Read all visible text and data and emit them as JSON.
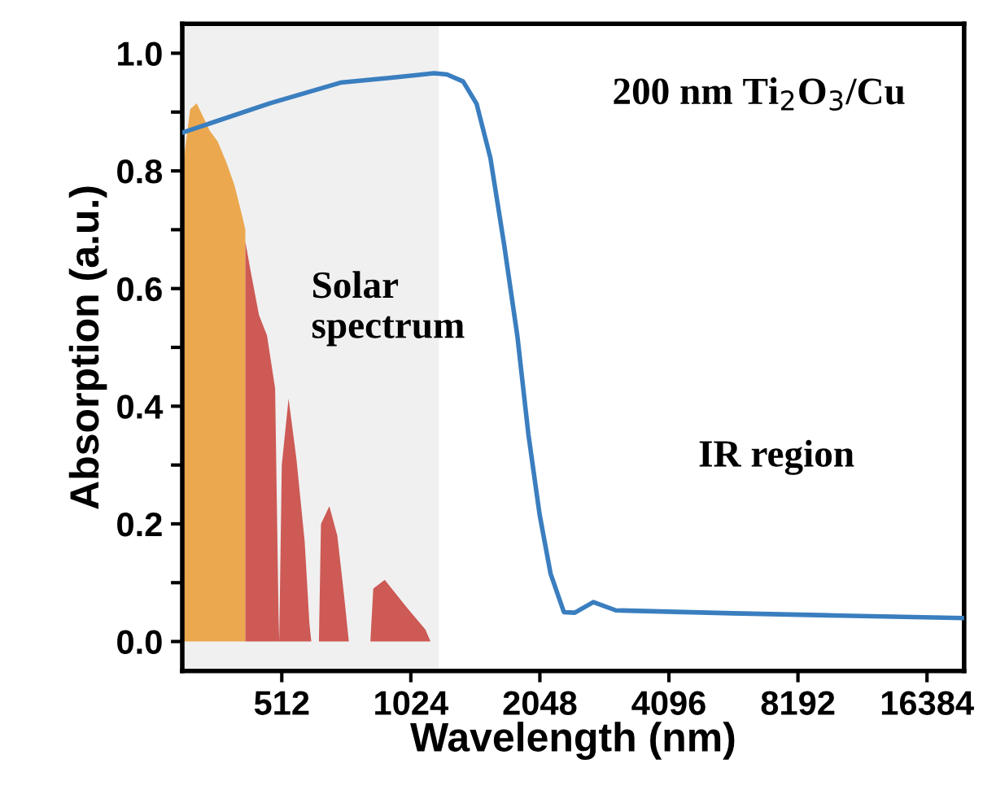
{
  "chart_data": {
    "type": "line",
    "xlabel": "Wavelength (nm)",
    "ylabel": "Absorption (a.u.)",
    "log": "x",
    "xlim": [
      300,
      20000
    ],
    "xticks": [
      512,
      1024,
      2048,
      4096,
      8192,
      16384
    ],
    "ylim": [
      -0.05,
      1.05
    ],
    "yticks": [
      {
        "value": 0,
        "label": "0.0"
      },
      {
        "value": 0.1,
        "label": null
      },
      {
        "value": 0.2,
        "label": "0.2"
      },
      {
        "value": 0.3,
        "label": null
      },
      {
        "value": 0.4,
        "label": "0.4"
      },
      {
        "value": 0.5,
        "label": null
      },
      {
        "value": 0.6,
        "label": "0.6"
      },
      {
        "value": 0.7,
        "label": null
      },
      {
        "value": 0.8,
        "label": "0.8"
      },
      {
        "value": 0.9,
        "label": null
      },
      {
        "value": 1.0,
        "label": "1.0"
      }
    ],
    "bands": [
      {
        "axis": "x",
        "from": 300,
        "to": 1190,
        "color": "#f0f0f0"
      }
    ],
    "annotations": [
      "Solar spectrum",
      "200 nm Ti$_{2}$O$_{3}$/Cu",
      "IR region"
    ],
    "series": [
      {
        "type": "area",
        "color": "#eba84f",
        "x": [
          300,
          313,
          324,
          334,
          348,
          363,
          380,
          397,
          415,
          421
        ],
        "values": [
          0.8,
          0.905,
          0.915,
          0.895,
          0.868,
          0.85,
          0.815,
          0.776,
          0.72,
          0.7
        ]
      },
      {
        "type": "area",
        "color": "#cd5a55",
        "x": [
          421,
          433,
          453,
          473,
          494,
          503,
          505,
          512,
          531,
          554,
          579,
          594,
          600,
          625,
          632,
          661,
          690,
          715,
          734,
          824,
          837,
          890,
          997,
          1108,
          1138
        ],
        "values": [
          0.68,
          0.63,
          0.555,
          0.52,
          0.43,
          0.05,
          0,
          0.3,
          0.413,
          0.31,
          0.17,
          0.03,
          0,
          0,
          0.2,
          0.23,
          0.18,
          0.08,
          0,
          0,
          0.09,
          0.105,
          0.06,
          0.02,
          0
        ]
      },
      {
        "color": "#3a7ebf",
        "x": [
          300,
          481,
          702,
          913,
          1160,
          1243,
          1356,
          1458,
          1570,
          1690,
          1815,
          1925,
          2045,
          2170,
          2330,
          2470,
          2730,
          3080,
          5760,
          10350,
          19900
        ],
        "values": [
          0.865,
          0.915,
          0.95,
          0.958,
          0.966,
          0.964,
          0.952,
          0.914,
          0.822,
          0.675,
          0.519,
          0.353,
          0.216,
          0.115,
          0.05,
          0.049,
          0.067,
          0.053,
          0.048,
          0.044,
          0.04
        ]
      }
    ]
  }
}
